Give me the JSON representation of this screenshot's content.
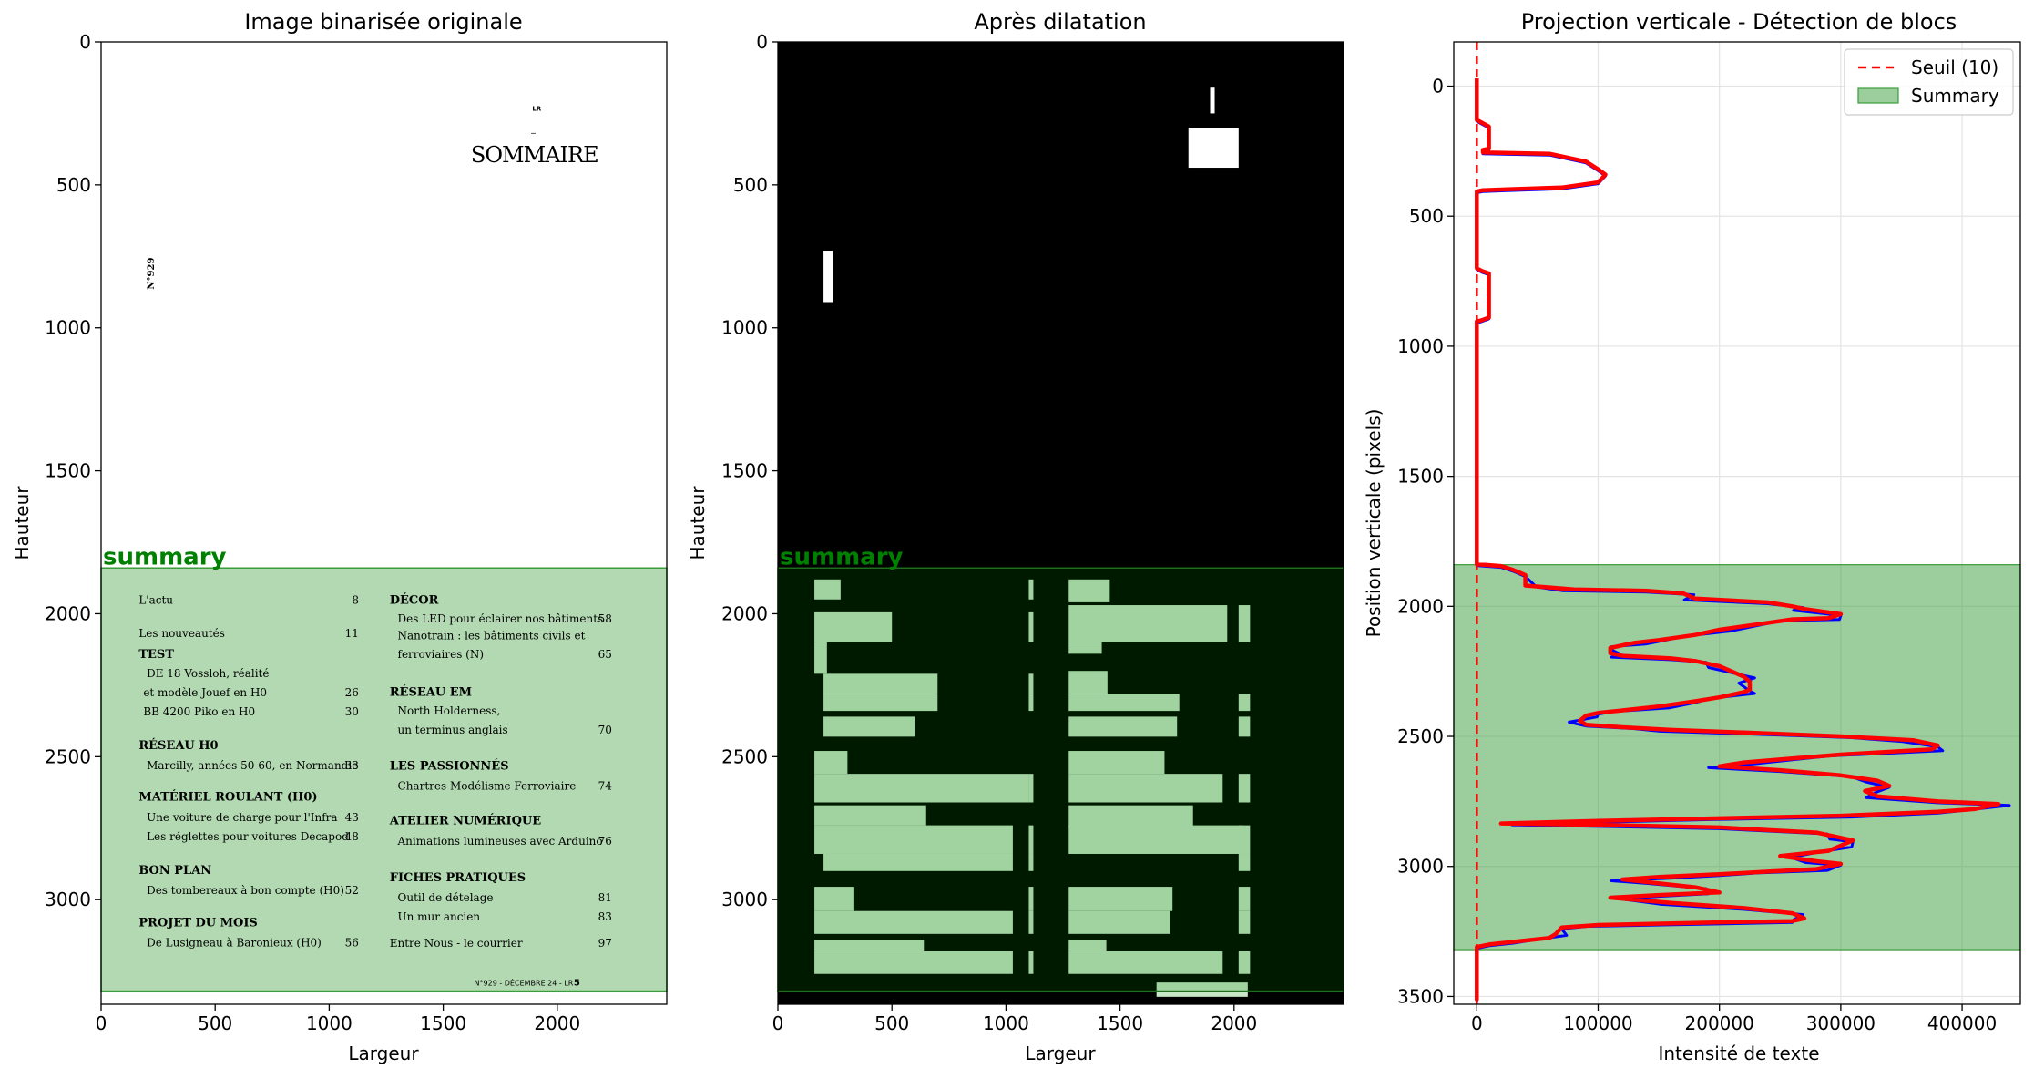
{
  "panels": {
    "left": {
      "title": "Image binarisée originale",
      "xlabel": "Largeur",
      "ylabel": "Hauteur",
      "xticks": [
        0,
        500,
        1000,
        1500,
        2000
      ],
      "yticks": [
        0,
        500,
        1000,
        1500,
        2000,
        2500,
        3000
      ],
      "region_label": "summary"
    },
    "middle": {
      "title": "Après dilatation",
      "xlabel": "Largeur",
      "ylabel": "Hauteur",
      "xticks": [
        0,
        500,
        1000,
        1500,
        2000
      ],
      "yticks": [
        0,
        500,
        1000,
        1500,
        2000,
        2500,
        3000
      ],
      "region_label": "summary"
    },
    "right": {
      "title": "Projection verticale - Détection de blocs",
      "xlabel": "Intensité de texte",
      "ylabel": "Position verticale (pixels)",
      "xticks": [
        0,
        100000,
        200000,
        300000,
        400000
      ],
      "yticks": [
        0,
        500,
        1000,
        1500,
        2000,
        2500,
        3000,
        3500
      ],
      "legend": {
        "threshold": "Seuil (10)",
        "summary": "Summary"
      }
    }
  },
  "document": {
    "header_small": "LR",
    "title": "SOMMAIRE",
    "issue_vertical": "N°929",
    "footer": "N°929 - DÉCEMBRE 24 - LR",
    "footer_page": "5",
    "col1": [
      {
        "type": "item",
        "text": "L'actu",
        "page": "8"
      },
      {
        "type": "item",
        "text": "Les nouveautés",
        "page": "11"
      },
      {
        "type": "head",
        "text": "TEST"
      },
      {
        "type": "sub",
        "text": "DE 18 Vossloh, réalité",
        "page": ""
      },
      {
        "type": "sub2",
        "text": "et modèle Jouef en H0",
        "page": "26"
      },
      {
        "type": "sub2",
        "text": "BB 4200 Piko en H0",
        "page": "30"
      },
      {
        "type": "head",
        "text": "RÉSEAU H0"
      },
      {
        "type": "sub",
        "text": "Marcilly, années 50-60, en Normandie",
        "page": "33"
      },
      {
        "type": "head",
        "text": "MATÉRIEL ROULANT (H0)"
      },
      {
        "type": "sub",
        "text": "Une voiture de charge pour l'Infra",
        "page": "43"
      },
      {
        "type": "sub",
        "text": "Les réglettes pour voitures Decapod",
        "page": "48"
      },
      {
        "type": "head",
        "text": "BON PLAN"
      },
      {
        "type": "sub",
        "text": "Des tombereaux à bon compte (H0)",
        "page": "52"
      },
      {
        "type": "head",
        "text": "PROJET DU MOIS"
      },
      {
        "type": "sub",
        "text": "De Lusigneau à Baronieux (H0)",
        "page": "56"
      }
    ],
    "col2": [
      {
        "type": "head",
        "text": "DÉCOR"
      },
      {
        "type": "sub",
        "text": "Des LED pour éclairer nos bâtiments",
        "page": "58"
      },
      {
        "type": "sub",
        "text": "Nanotrain : les bâtiments civils et",
        "page": ""
      },
      {
        "type": "sub",
        "text": "ferroviaires (N)",
        "page": "65"
      },
      {
        "type": "head",
        "text": "RÉSEAU EM"
      },
      {
        "type": "sub",
        "text": "North Holderness,",
        "page": ""
      },
      {
        "type": "sub",
        "text": "un terminus anglais",
        "page": "70"
      },
      {
        "type": "head",
        "text": "LES PASSIONNÉS"
      },
      {
        "type": "sub",
        "text": "Chartres Modélisme Ferroviaire",
        "page": "74"
      },
      {
        "type": "head",
        "text": "ATELIER NUMÉRIQUE"
      },
      {
        "type": "sub",
        "text": "Animations lumineuses avec Arduino",
        "page": "76"
      },
      {
        "type": "head",
        "text": "FICHES PRATIQUES"
      },
      {
        "type": "sub",
        "text": "Outil de dételage",
        "page": "81"
      },
      {
        "type": "sub",
        "text": "Un mur ancien",
        "page": "83"
      },
      {
        "type": "item",
        "text": "Entre Nous - le courrier",
        "page": "97"
      }
    ]
  },
  "chart_data": [
    {
      "type": "image",
      "title": "Image binarisée originale",
      "xlabel": "Largeur",
      "ylabel": "Hauteur",
      "xlim": [
        0,
        2480
      ],
      "ylim": [
        3366,
        0
      ],
      "highlight_region": {
        "label": "summary",
        "y_start": 1840,
        "y_end": 3320,
        "color": "#008000"
      }
    },
    {
      "type": "image",
      "title": "Après dilatation",
      "xlabel": "Largeur",
      "ylabel": "Hauteur",
      "xlim": [
        0,
        2480
      ],
      "ylim": [
        3366,
        0
      ],
      "highlight_region": {
        "label": "summary",
        "y_start": 1840,
        "y_end": 3320,
        "color": "#008000"
      },
      "blobs": [
        [
          1895,
          160,
          1915,
          250
        ],
        [
          1800,
          300,
          2020,
          440
        ],
        [
          200,
          730,
          240,
          910
        ],
        [
          160,
          1880,
          275,
          1950
        ],
        [
          1100,
          1880,
          1120,
          1950
        ],
        [
          1275,
          1880,
          1455,
          1960
        ],
        [
          160,
          1995,
          500,
          2100
        ],
        [
          1100,
          1995,
          1120,
          2100
        ],
        [
          1275,
          1970,
          1970,
          2100
        ],
        [
          2020,
          1970,
          2070,
          2100
        ],
        [
          160,
          2100,
          215,
          2210
        ],
        [
          1275,
          2100,
          1420,
          2140
        ],
        [
          200,
          2210,
          700,
          2280
        ],
        [
          1100,
          2210,
          1120,
          2280
        ],
        [
          1275,
          2200,
          1445,
          2280
        ],
        [
          200,
          2280,
          700,
          2340
        ],
        [
          1100,
          2280,
          1120,
          2340
        ],
        [
          1275,
          2280,
          1760,
          2340
        ],
        [
          2020,
          2280,
          2070,
          2340
        ],
        [
          200,
          2360,
          600,
          2430
        ],
        [
          1275,
          2360,
          1750,
          2430
        ],
        [
          2020,
          2360,
          2070,
          2430
        ],
        [
          160,
          2480,
          305,
          2560
        ],
        [
          1275,
          2480,
          1695,
          2560
        ],
        [
          160,
          2560,
          1100,
          2660
        ],
        [
          1100,
          2560,
          1120,
          2660
        ],
        [
          1275,
          2560,
          1950,
          2660
        ],
        [
          2020,
          2560,
          2070,
          2660
        ],
        [
          160,
          2670,
          650,
          2740
        ],
        [
          1275,
          2670,
          1820,
          2750
        ],
        [
          160,
          2740,
          1030,
          2840
        ],
        [
          1100,
          2740,
          1120,
          2840
        ],
        [
          1275,
          2740,
          2040,
          2840
        ],
        [
          2020,
          2740,
          2070,
          2840
        ],
        [
          200,
          2840,
          1030,
          2900
        ],
        [
          1100,
          2840,
          1120,
          2900
        ],
        [
          2020,
          2840,
          2070,
          2900
        ],
        [
          160,
          2955,
          335,
          3040
        ],
        [
          1100,
          2955,
          1120,
          3040
        ],
        [
          1275,
          2955,
          1730,
          3040
        ],
        [
          2020,
          2955,
          2070,
          3040
        ],
        [
          160,
          3040,
          1030,
          3120
        ],
        [
          1100,
          3040,
          1120,
          3120
        ],
        [
          1275,
          3040,
          1720,
          3120
        ],
        [
          2020,
          3040,
          2070,
          3120
        ],
        [
          160,
          3140,
          640,
          3180
        ],
        [
          1275,
          3140,
          1440,
          3180
        ],
        [
          160,
          3180,
          1030,
          3260
        ],
        [
          1100,
          3180,
          1120,
          3260
        ],
        [
          1275,
          3180,
          1950,
          3260
        ],
        [
          2020,
          3180,
          2070,
          3260
        ],
        [
          1660,
          3290,
          2060,
          3340
        ]
      ]
    },
    {
      "type": "line",
      "title": "Projection verticale - Détection de blocs",
      "xlabel": "Intensité de texte",
      "ylabel": "Position verticale (pixels)",
      "xlim": [
        -19000,
        448000
      ],
      "ylim": [
        3530,
        -170
      ],
      "y_inverted": true,
      "grid": true,
      "legend_position": "top-right",
      "threshold": {
        "name": "Seuil (10)",
        "x": 10,
        "color": "#ff0000",
        "style": "dashed"
      },
      "summary_region": {
        "name": "Summary",
        "y_start": 1840,
        "y_end": 3320,
        "color": "#3a9c3a"
      },
      "series": [
        {
          "color": "#ff0000",
          "points": [
            [
              0,
              -30
            ],
            [
              0,
              130
            ],
            [
              4000,
              140
            ],
            [
              10000,
              155
            ],
            [
              10000,
              240
            ],
            [
              5000,
              245
            ],
            [
              5000,
              255
            ],
            [
              60000,
              260
            ],
            [
              90000,
              290
            ],
            [
              100000,
              320
            ],
            [
              106000,
              340
            ],
            [
              100000,
              370
            ],
            [
              70000,
              390
            ],
            [
              5000,
              400
            ],
            [
              0,
              405
            ],
            [
              0,
              700
            ],
            [
              4000,
              710
            ],
            [
              10000,
              720
            ],
            [
              10000,
              890
            ],
            [
              4000,
              900
            ],
            [
              0,
              905
            ],
            [
              0,
              1800
            ],
            [
              0,
              1838
            ],
            [
              20000,
              1845
            ],
            [
              30000,
              1860
            ],
            [
              40000,
              1880
            ],
            [
              40000,
              1920
            ],
            [
              80000,
              1935
            ],
            [
              140000,
              1940
            ],
            [
              170000,
              1950
            ],
            [
              180000,
              1970
            ],
            [
              240000,
              1985
            ],
            [
              260000,
              2000
            ],
            [
              270000,
              2010
            ],
            [
              300000,
              2030
            ],
            [
              290000,
              2045
            ],
            [
              260000,
              2050
            ],
            [
              230000,
              2070
            ],
            [
              200000,
              2090
            ],
            [
              180000,
              2110
            ],
            [
              150000,
              2130
            ],
            [
              130000,
              2140
            ],
            [
              120000,
              2150
            ],
            [
              110000,
              2160
            ],
            [
              110000,
              2180
            ],
            [
              120000,
              2190
            ],
            [
              160000,
              2200
            ],
            [
              180000,
              2210
            ],
            [
              200000,
              2230
            ],
            [
              210000,
              2250
            ],
            [
              220000,
              2270
            ],
            [
              225000,
              2290
            ],
            [
              225000,
              2320
            ],
            [
              220000,
              2330
            ],
            [
              200000,
              2350
            ],
            [
              180000,
              2365
            ],
            [
              150000,
              2385
            ],
            [
              120000,
              2400
            ],
            [
              100000,
              2410
            ],
            [
              90000,
              2420
            ],
            [
              85000,
              2440
            ],
            [
              90000,
              2455
            ],
            [
              120000,
              2465
            ],
            [
              160000,
              2475
            ],
            [
              220000,
              2485
            ],
            [
              300000,
              2500
            ],
            [
              360000,
              2515
            ],
            [
              380000,
              2535
            ],
            [
              375000,
              2550
            ],
            [
              300000,
              2570
            ],
            [
              260000,
              2585
            ],
            [
              220000,
              2600
            ],
            [
              200000,
              2615
            ],
            [
              250000,
              2630
            ],
            [
              300000,
              2650
            ],
            [
              330000,
              2670
            ],
            [
              340000,
              2690
            ],
            [
              320000,
              2710
            ],
            [
              330000,
              2730
            ],
            [
              380000,
              2750
            ],
            [
              430000,
              2760
            ],
            [
              410000,
              2780
            ],
            [
              380000,
              2790
            ],
            [
              300000,
              2805
            ],
            [
              200000,
              2815
            ],
            [
              100000,
              2825
            ],
            [
              20000,
              2835
            ],
            [
              100000,
              2840
            ],
            [
              200000,
              2850
            ],
            [
              280000,
              2870
            ],
            [
              300000,
              2890
            ],
            [
              310000,
              2900
            ],
            [
              300000,
              2920
            ],
            [
              290000,
              2940
            ],
            [
              270000,
              2950
            ],
            [
              250000,
              2960
            ],
            [
              280000,
              2980
            ],
            [
              300000,
              2990
            ],
            [
              280000,
              3010
            ],
            [
              240000,
              3020
            ],
            [
              200000,
              3030
            ],
            [
              150000,
              3040
            ],
            [
              120000,
              3050
            ],
            [
              140000,
              3060
            ],
            [
              180000,
              3080
            ],
            [
              200000,
              3100
            ],
            [
              150000,
              3110
            ],
            [
              110000,
              3120
            ],
            [
              160000,
              3140
            ],
            [
              220000,
              3160
            ],
            [
              260000,
              3180
            ],
            [
              270000,
              3200
            ],
            [
              260000,
              3210
            ],
            [
              200000,
              3215
            ],
            [
              100000,
              3225
            ],
            [
              70000,
              3235
            ],
            [
              65000,
              3260
            ],
            [
              60000,
              3275
            ],
            [
              30000,
              3290
            ],
            [
              10000,
              3300
            ],
            [
              0,
              3310
            ],
            [
              0,
              3515
            ]
          ]
        }
      ]
    }
  ]
}
